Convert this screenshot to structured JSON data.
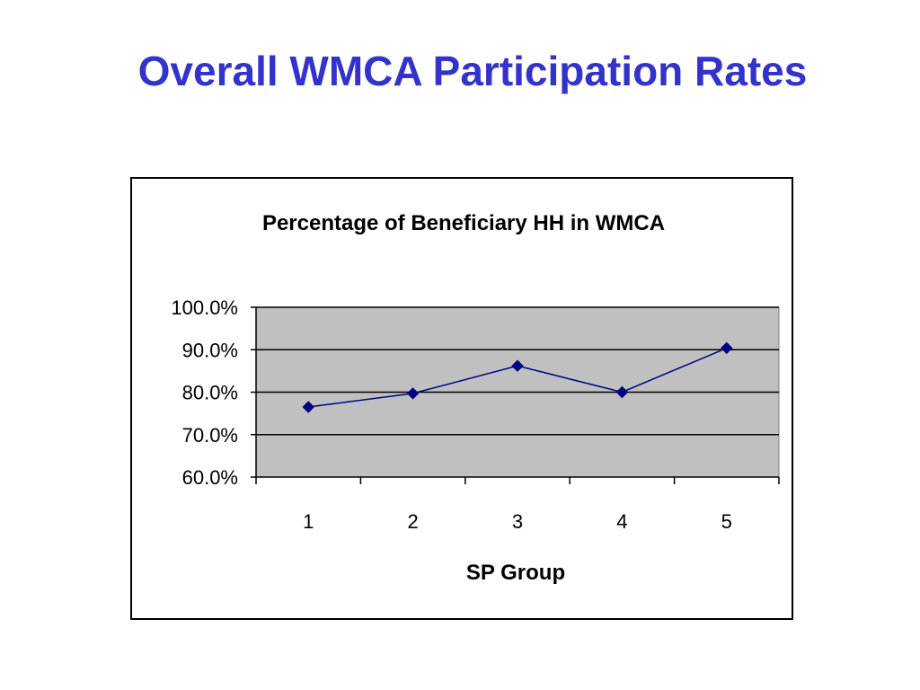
{
  "slide": {
    "title": "Overall WMCA Participation Rates"
  },
  "colors": {
    "title": "#3333cc",
    "plot_area": "#c0c0c0",
    "series_line": "#000080",
    "gridline": "#000000",
    "frame": "#000000"
  },
  "chart_data": {
    "type": "line",
    "title": "Percentage of Beneficiary HH in WMCA",
    "xlabel": "SP Group",
    "ylabel": "",
    "categories": [
      "1",
      "2",
      "3",
      "4",
      "5"
    ],
    "y_tick_labels": [
      "100.0%",
      "90.0%",
      "80.0%",
      "70.0%",
      "60.0%"
    ],
    "ylim": [
      0.6,
      1.0
    ],
    "y_ticks": [
      1.0,
      0.9,
      0.8,
      0.7,
      0.6
    ],
    "y_format": "percent_1dp",
    "grid": "horizontal major gridlines",
    "legend": "none",
    "marker": "diamond",
    "series": [
      {
        "values": [
          0.765,
          0.797,
          0.862,
          0.8,
          0.904
        ]
      }
    ]
  }
}
